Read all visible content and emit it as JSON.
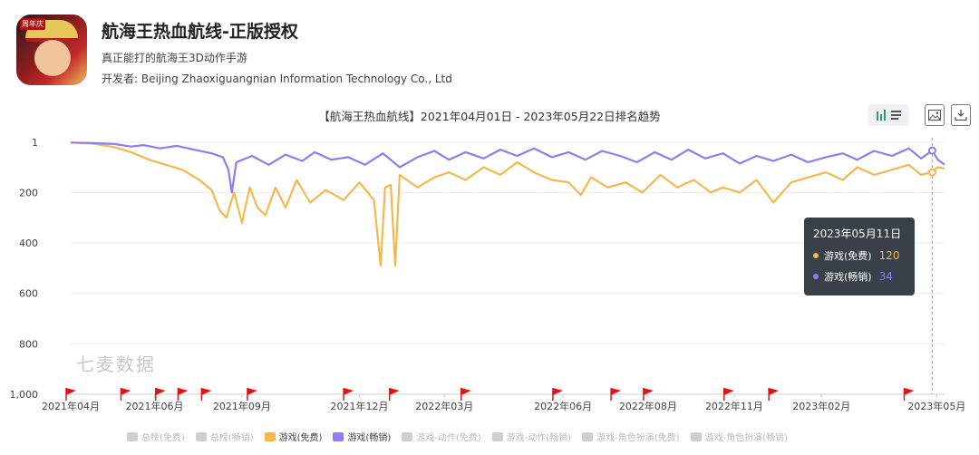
{
  "app": {
    "title": "航海王热血航线-正版授权",
    "subtitle": "真正能打的航海王3D动作手游",
    "developer_label": "开发者: Beijing Zhaoxiguangnian Information Technology Co., Ltd",
    "icon_badge": "周年庆"
  },
  "toolbar": {
    "chart_type_icon": "bar-chart-icon",
    "list_icon": "list-icon",
    "image_icon": "image-icon",
    "download_icon": "download-icon"
  },
  "watermark": "七麦数据",
  "tooltip": {
    "date": "2023年05月11日",
    "rows": [
      {
        "label": "游戏(免费)",
        "value": "120",
        "color": "#f5b84e"
      },
      {
        "label": "游戏(畅销)",
        "value": "34",
        "color": "#8f7cf2"
      }
    ]
  },
  "legend": [
    {
      "label": "总榜(免费)",
      "active": false,
      "color": "#cfcfcf"
    },
    {
      "label": "总榜(畅销)",
      "active": false,
      "color": "#cfcfcf"
    },
    {
      "label": "游戏(免费)",
      "active": true,
      "color": "#f5b84e"
    },
    {
      "label": "游戏(畅销)",
      "active": true,
      "color": "#8f7cf2"
    },
    {
      "label": "游戏-动作(免费)",
      "active": false,
      "color": "#cfcfcf"
    },
    {
      "label": "游戏-动作(畅销)",
      "active": false,
      "color": "#cfcfcf"
    },
    {
      "label": "游戏-角色扮演(免费)",
      "active": false,
      "color": "#cfcfcf"
    },
    {
      "label": "游戏-角色扮演(畅销)",
      "active": false,
      "color": "#cfcfcf"
    }
  ],
  "chart_data": {
    "type": "line",
    "title": "【航海王热血航线】2021年04月01日 - 2023年05月22日排名趋势",
    "y_inverted": true,
    "ylim": [
      1,
      1000
    ],
    "y_ticks": [
      "1",
      "200",
      "400",
      "600",
      "800",
      "1,000"
    ],
    "y_tick_values": [
      1,
      200,
      400,
      600,
      800,
      1000
    ],
    "x_range": [
      "2021-04-01",
      "2023-05-22"
    ],
    "x_ticks": [
      {
        "label": "2021年04月",
        "date": "2021-04-01"
      },
      {
        "label": "2021年06月",
        "date": "2021-06-15"
      },
      {
        "label": "2021年09月",
        "date": "2021-09-01"
      },
      {
        "label": "2021年12月",
        "date": "2021-12-15"
      },
      {
        "label": "2022年03月",
        "date": "2022-03-01"
      },
      {
        "label": "2022年06月",
        "date": "2022-06-15"
      },
      {
        "label": "2022年08月",
        "date": "2022-08-30"
      },
      {
        "label": "2022年11月",
        "date": "2022-11-15"
      },
      {
        "label": "2023年02月",
        "date": "2023-02-01"
      },
      {
        "label": "2023年05月",
        "date": "2023-05-15"
      }
    ],
    "grid": true,
    "cursor_date": "2023-05-11",
    "event_flags": [
      "2021-04-01",
      "2021-05-20",
      "2021-06-20",
      "2021-07-10",
      "2021-07-31",
      "2021-09-10",
      "2021-12-05",
      "2022-01-15",
      "2022-03-20",
      "2022-06-10",
      "2022-08-01",
      "2022-08-30",
      "2022-11-10",
      "2022-12-20",
      "2023-04-20"
    ],
    "series": [
      {
        "name": "游戏(畅销)",
        "color": "#8f7cf2",
        "points": [
          [
            "2021-04-01",
            2
          ],
          [
            "2021-04-20",
            4
          ],
          [
            "2021-05-10",
            8
          ],
          [
            "2021-05-25",
            18
          ],
          [
            "2021-06-05",
            12
          ],
          [
            "2021-06-20",
            25
          ],
          [
            "2021-07-05",
            15
          ],
          [
            "2021-07-20",
            30
          ],
          [
            "2021-08-05",
            45
          ],
          [
            "2021-08-15",
            60
          ],
          [
            "2021-08-20",
            110
          ],
          [
            "2021-08-23",
            200
          ],
          [
            "2021-08-27",
            80
          ],
          [
            "2021-09-10",
            55
          ],
          [
            "2021-09-25",
            90
          ],
          [
            "2021-10-10",
            50
          ],
          [
            "2021-10-25",
            75
          ],
          [
            "2021-11-05",
            40
          ],
          [
            "2021-11-20",
            70
          ],
          [
            "2021-12-05",
            60
          ],
          [
            "2021-12-20",
            90
          ],
          [
            "2022-01-05",
            45
          ],
          [
            "2022-01-20",
            100
          ],
          [
            "2022-02-05",
            60
          ],
          [
            "2022-02-20",
            35
          ],
          [
            "2022-03-05",
            70
          ],
          [
            "2022-03-20",
            40
          ],
          [
            "2022-04-05",
            65
          ],
          [
            "2022-04-20",
            30
          ],
          [
            "2022-05-05",
            55
          ],
          [
            "2022-05-20",
            25
          ],
          [
            "2022-06-05",
            60
          ],
          [
            "2022-06-20",
            40
          ],
          [
            "2022-07-05",
            70
          ],
          [
            "2022-07-20",
            35
          ],
          [
            "2022-08-05",
            55
          ],
          [
            "2022-08-20",
            80
          ],
          [
            "2022-09-05",
            40
          ],
          [
            "2022-09-20",
            70
          ],
          [
            "2022-10-05",
            30
          ],
          [
            "2022-10-20",
            65
          ],
          [
            "2022-11-05",
            45
          ],
          [
            "2022-11-20",
            85
          ],
          [
            "2022-12-05",
            55
          ],
          [
            "2022-12-20",
            75
          ],
          [
            "2023-01-05",
            50
          ],
          [
            "2023-01-20",
            80
          ],
          [
            "2023-02-05",
            60
          ],
          [
            "2023-02-20",
            45
          ],
          [
            "2023-03-05",
            70
          ],
          [
            "2023-03-20",
            35
          ],
          [
            "2023-04-05",
            55
          ],
          [
            "2023-04-20",
            25
          ],
          [
            "2023-05-01",
            65
          ],
          [
            "2023-05-11",
            34
          ],
          [
            "2023-05-16",
            70
          ],
          [
            "2023-05-22",
            90
          ]
        ]
      },
      {
        "name": "游戏(免费)",
        "color": "#f5b84e",
        "points": [
          [
            "2021-04-01",
            2
          ],
          [
            "2021-04-20",
            6
          ],
          [
            "2021-05-10",
            20
          ],
          [
            "2021-05-25",
            40
          ],
          [
            "2021-06-10",
            70
          ],
          [
            "2021-06-25",
            90
          ],
          [
            "2021-07-10",
            110
          ],
          [
            "2021-07-25",
            150
          ],
          [
            "2021-08-05",
            190
          ],
          [
            "2021-08-12",
            270
          ],
          [
            "2021-08-18",
            300
          ],
          [
            "2021-08-25",
            200
          ],
          [
            "2021-09-01",
            320
          ],
          [
            "2021-09-08",
            180
          ],
          [
            "2021-09-15",
            260
          ],
          [
            "2021-09-22",
            290
          ],
          [
            "2021-10-01",
            180
          ],
          [
            "2021-10-10",
            260
          ],
          [
            "2021-10-20",
            150
          ],
          [
            "2021-11-01",
            240
          ],
          [
            "2021-11-15",
            190
          ],
          [
            "2021-12-01",
            230
          ],
          [
            "2021-12-15",
            160
          ],
          [
            "2021-12-28",
            230
          ],
          [
            "2022-01-03",
            490
          ],
          [
            "2022-01-07",
            180
          ],
          [
            "2022-01-12",
            170
          ],
          [
            "2022-01-16",
            490
          ],
          [
            "2022-01-20",
            130
          ],
          [
            "2022-02-05",
            180
          ],
          [
            "2022-02-20",
            140
          ],
          [
            "2022-03-05",
            120
          ],
          [
            "2022-03-20",
            150
          ],
          [
            "2022-04-05",
            100
          ],
          [
            "2022-04-20",
            130
          ],
          [
            "2022-05-05",
            80
          ],
          [
            "2022-05-20",
            120
          ],
          [
            "2022-06-05",
            150
          ],
          [
            "2022-06-20",
            160
          ],
          [
            "2022-07-01",
            210
          ],
          [
            "2022-07-10",
            140
          ],
          [
            "2022-07-25",
            180
          ],
          [
            "2022-08-10",
            160
          ],
          [
            "2022-08-25",
            200
          ],
          [
            "2022-09-10",
            130
          ],
          [
            "2022-09-25",
            180
          ],
          [
            "2022-10-10",
            150
          ],
          [
            "2022-10-25",
            200
          ],
          [
            "2022-11-05",
            180
          ],
          [
            "2022-11-20",
            200
          ],
          [
            "2022-12-05",
            150
          ],
          [
            "2022-12-20",
            240
          ],
          [
            "2023-01-05",
            160
          ],
          [
            "2023-01-20",
            140
          ],
          [
            "2023-02-05",
            120
          ],
          [
            "2023-02-20",
            150
          ],
          [
            "2023-03-05",
            100
          ],
          [
            "2023-03-20",
            130
          ],
          [
            "2023-04-05",
            110
          ],
          [
            "2023-04-20",
            90
          ],
          [
            "2023-05-01",
            130
          ],
          [
            "2023-05-11",
            120
          ],
          [
            "2023-05-16",
            100
          ],
          [
            "2023-05-22",
            105
          ]
        ]
      }
    ]
  }
}
